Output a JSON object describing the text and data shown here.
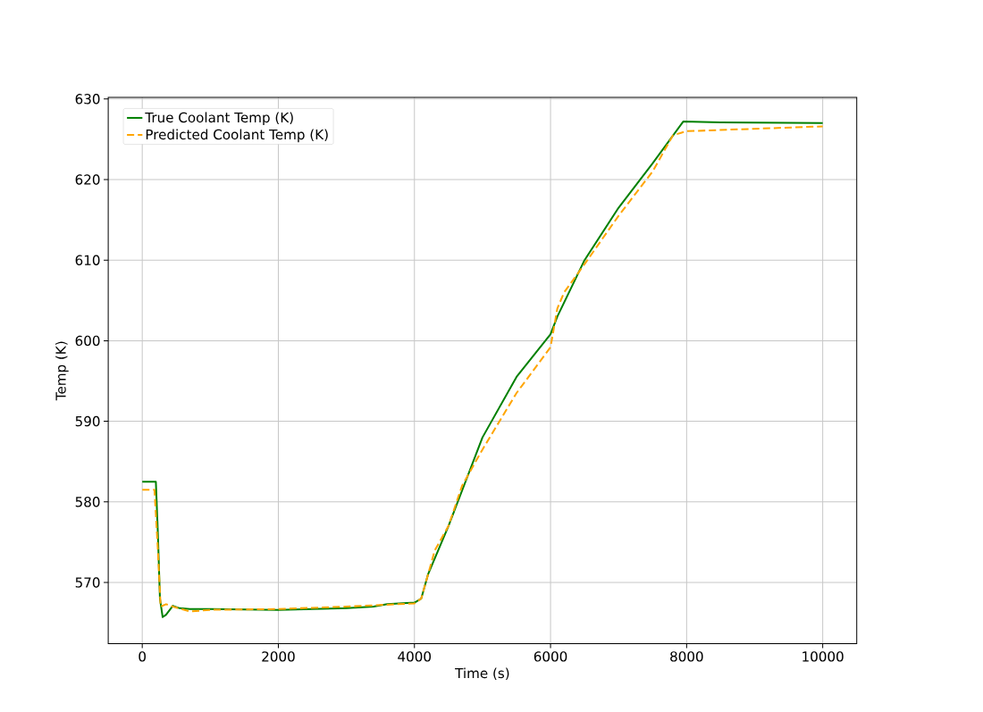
{
  "chart_data": {
    "type": "line",
    "xlabel": "Time (s)",
    "ylabel": "Temp (K)",
    "xlim": [
      -500,
      10500
    ],
    "ylim": [
      562.4,
      630.2
    ],
    "xticks": [
      0,
      2000,
      4000,
      6000,
      8000,
      10000
    ],
    "yticks": [
      570,
      580,
      590,
      600,
      610,
      620,
      630
    ],
    "grid": true,
    "legend": "top left",
    "series": [
      {
        "name": "True Coolant Temp (K)",
        "color": "#008000",
        "line_style": "solid",
        "x": [
          0,
          200,
          230,
          260,
          300,
          350,
          450,
          550,
          700,
          1000,
          2000,
          3000,
          3400,
          3600,
          4000,
          4100,
          4200,
          4500,
          5000,
          5500,
          6000,
          6100,
          6500,
          7000,
          7500,
          7950,
          8500,
          10000
        ],
        "values": [
          582.5,
          582.5,
          576,
          568,
          565.7,
          566,
          567.1,
          566.8,
          566.7,
          566.7,
          566.6,
          566.8,
          567,
          567.3,
          567.5,
          568,
          571,
          577,
          588,
          595.5,
          600.8,
          603,
          610,
          616.5,
          622,
          627.2,
          627.1,
          627
        ]
      },
      {
        "name": "Predicted Coolant Temp (K)",
        "color": "#ffa500",
        "line_style": "dashed",
        "x": [
          0,
          180,
          230,
          270,
          350,
          450,
          700,
          1000,
          2000,
          3000,
          4000,
          4100,
          4300,
          4500,
          4700,
          5000,
          5500,
          6000,
          6100,
          6200,
          6500,
          7000,
          7500,
          7800,
          8000,
          10000
        ],
        "values": [
          581.5,
          581.5,
          574,
          567,
          567.3,
          567,
          566.4,
          566.6,
          566.7,
          567,
          567.4,
          568,
          574,
          577,
          582,
          586.5,
          593.5,
          599.2,
          604,
          606,
          609.5,
          615.5,
          621,
          625.5,
          626,
          626.6
        ]
      }
    ]
  }
}
